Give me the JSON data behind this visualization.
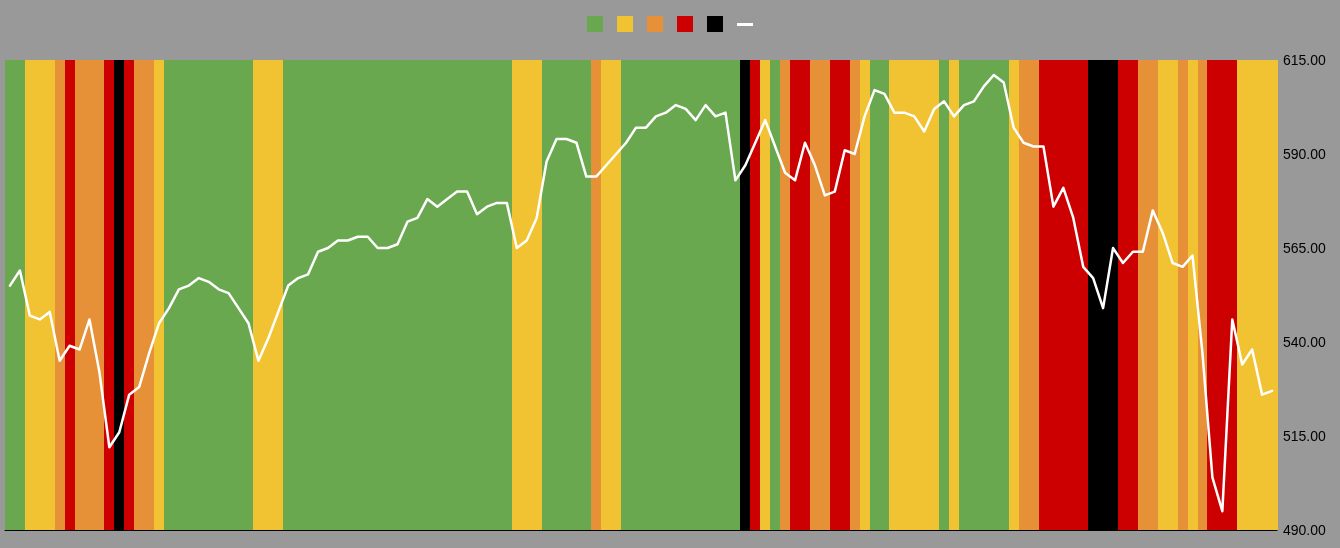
{
  "chart_data": {
    "type": "line",
    "categories": [
      null,
      null,
      null,
      null,
      null,
      null,
      null,
      null,
      null,
      null,
      null,
      null,
      null,
      null,
      null,
      null,
      null,
      null,
      null,
      null,
      null,
      null,
      null,
      null,
      null,
      null,
      null,
      null,
      null,
      null,
      null,
      null,
      null,
      null,
      null,
      null,
      null,
      null,
      null,
      null,
      null,
      null,
      null,
      null,
      null,
      null,
      null,
      null,
      null,
      null,
      null,
      null,
      null,
      null,
      null,
      null,
      null,
      null,
      null,
      null,
      null,
      null,
      null,
      null,
      null,
      null,
      null,
      null,
      null,
      null,
      null,
      null,
      null,
      null,
      null,
      null,
      null,
      null,
      null,
      null,
      null,
      null,
      null,
      null,
      null,
      null,
      null,
      null,
      null,
      null,
      null,
      null,
      null,
      null,
      null,
      null,
      null,
      null,
      null,
      null,
      null,
      null,
      null,
      null,
      null,
      null,
      null,
      null,
      null,
      null,
      null,
      null,
      null,
      null,
      null,
      null,
      null,
      null,
      null,
      null,
      null,
      null,
      null,
      null,
      null,
      null,
      null,
      null
    ],
    "ylim": [
      490,
      615
    ],
    "yticks": [
      {
        "value": 490,
        "label": "490.00"
      },
      {
        "value": 515,
        "label": "515.00"
      },
      {
        "value": 540,
        "label": "540.00"
      },
      {
        "value": 565,
        "label": "565.00"
      },
      {
        "value": 590,
        "label": "590.00"
      },
      {
        "value": 615,
        "label": "615.00"
      }
    ],
    "tick_labels": "y",
    "marker": "none",
    "line_style": "solid",
    "series": [
      {
        "color": "#ffffff",
        "values": [
          555,
          559,
          547,
          546,
          548,
          535,
          539,
          538,
          546,
          532,
          512,
          516,
          526,
          528,
          537,
          545,
          549,
          554,
          555,
          557,
          556,
          554,
          553,
          549,
          545,
          535,
          541,
          548,
          555,
          557,
          558,
          564,
          565,
          567,
          567,
          568,
          568,
          565,
          565,
          566,
          572,
          573,
          578,
          576,
          578,
          580,
          580,
          574,
          576,
          577,
          577,
          565,
          567,
          573,
          588,
          594,
          594,
          593,
          584,
          584,
          587,
          590,
          593,
          597,
          597,
          600,
          601,
          603,
          602,
          599,
          603,
          600,
          601,
          583,
          587,
          593,
          599,
          592,
          585,
          583,
          593,
          587,
          579,
          580,
          591,
          590,
          600,
          607,
          606,
          601,
          601,
          600,
          596,
          602,
          604,
          600,
          603,
          604,
          608,
          611,
          609,
          597,
          593,
          592,
          592,
          576,
          581,
          573,
          560,
          557,
          549,
          565,
          561,
          564,
          564,
          575,
          569,
          561,
          560,
          563,
          537,
          504,
          495,
          546,
          534,
          538,
          526,
          527
        ]
      }
    ]
  }
}
